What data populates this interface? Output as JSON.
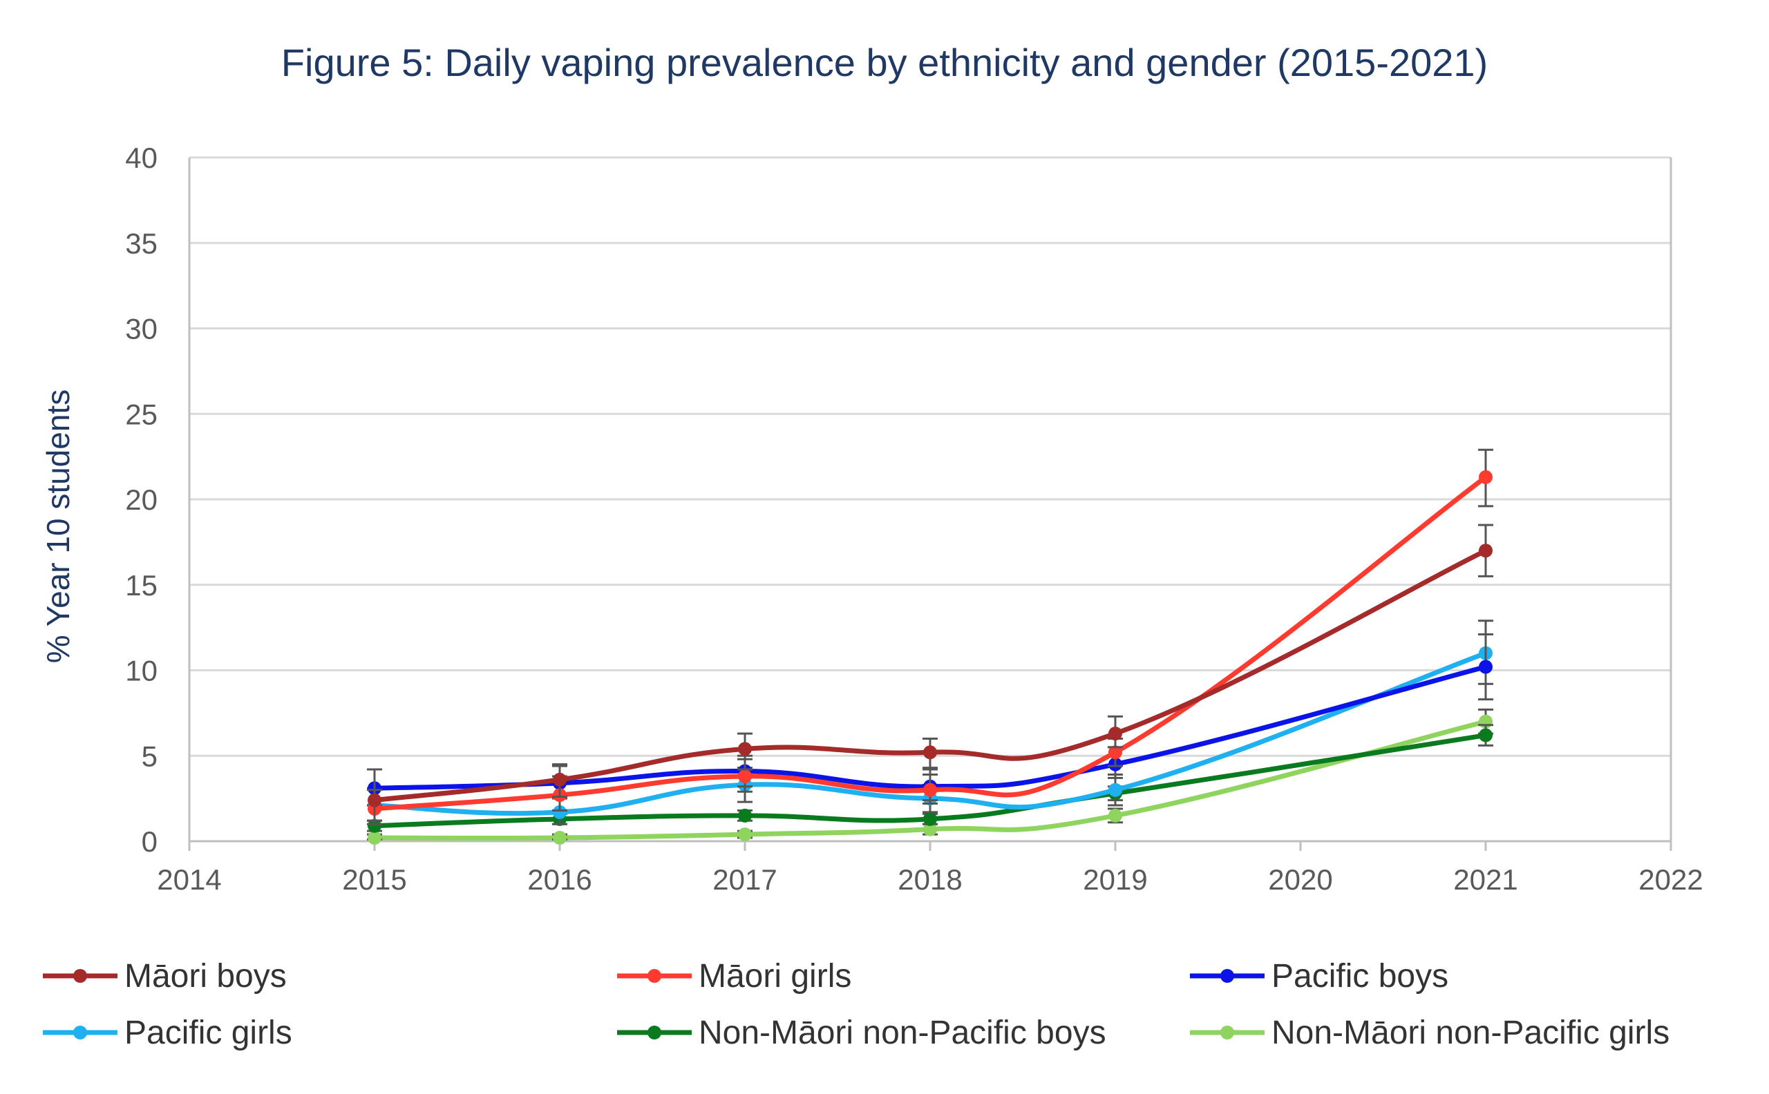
{
  "chart_data": {
    "type": "line",
    "title": "Figure 5: Daily vaping prevalence by ethnicity and gender (2015-2021)",
    "xlabel": "",
    "ylabel": "% Year 10 students",
    "xlim": [
      2014,
      2022
    ],
    "ylim": [
      0,
      40
    ],
    "x_ticks": [
      "2014",
      "2015",
      "2016",
      "2017",
      "2018",
      "2019",
      "2020",
      "2021",
      "2022"
    ],
    "y_ticks": [
      "0",
      "5",
      "10",
      "15",
      "20",
      "25",
      "30",
      "35",
      "40"
    ],
    "grid": true,
    "legend_position": "bottom",
    "error_bars": true,
    "x": [
      2015,
      2016,
      2017,
      2018,
      2019,
      2021
    ],
    "series": [
      {
        "name": "Māori boys",
        "color": "#a52a2a",
        "values": [
          2.4,
          3.6,
          5.4,
          5.2,
          6.3,
          17.0
        ],
        "err_low": [
          1.2,
          2.6,
          4.2,
          4.3,
          5.5,
          15.5
        ],
        "err_high": [
          4.2,
          4.5,
          6.3,
          6.0,
          7.3,
          18.5
        ]
      },
      {
        "name": "Māori girls",
        "color": "#ff3b2f",
        "values": [
          1.9,
          2.7,
          3.8,
          3.0,
          5.2,
          21.3
        ],
        "err_low": [
          1.0,
          1.8,
          2.9,
          2.2,
          4.4,
          19.6
        ],
        "err_high": [
          3.0,
          3.8,
          4.8,
          3.9,
          6.0,
          22.9
        ]
      },
      {
        "name": "Pacific boys",
        "color": "#0a14e8",
        "values": [
          3.1,
          3.4,
          4.1,
          3.2,
          4.5,
          10.2
        ],
        "err_low": [
          2.1,
          2.5,
          3.2,
          2.4,
          3.7,
          8.3
        ],
        "err_high": [
          4.2,
          4.4,
          5.0,
          4.2,
          5.5,
          12.1
        ]
      },
      {
        "name": "Pacific girls",
        "color": "#1eb0f0",
        "values": [
          2.1,
          1.7,
          3.3,
          2.5,
          3.0,
          11.0
        ],
        "err_low": [
          1.2,
          1.0,
          2.3,
          1.7,
          2.1,
          9.2
        ],
        "err_high": [
          3.1,
          2.6,
          4.3,
          3.3,
          3.9,
          12.9
        ]
      },
      {
        "name": "Non-Māori non-Pacific boys",
        "color": "#0a7a1e",
        "values": [
          0.9,
          1.3,
          1.5,
          1.3,
          2.8,
          6.2
        ],
        "err_low": [
          0.6,
          1.0,
          1.2,
          1.0,
          2.4,
          5.6
        ],
        "err_high": [
          1.2,
          1.6,
          1.8,
          1.6,
          3.2,
          6.8
        ]
      },
      {
        "name": "Non-Māori non-Pacific girls",
        "color": "#8fd45e",
        "values": [
          0.2,
          0.2,
          0.4,
          0.7,
          1.5,
          7.0
        ],
        "err_low": [
          0.1,
          0.1,
          0.2,
          0.4,
          1.1,
          6.3
        ],
        "err_high": [
          0.4,
          0.4,
          0.6,
          1.0,
          1.9,
          7.7
        ]
      }
    ]
  }
}
